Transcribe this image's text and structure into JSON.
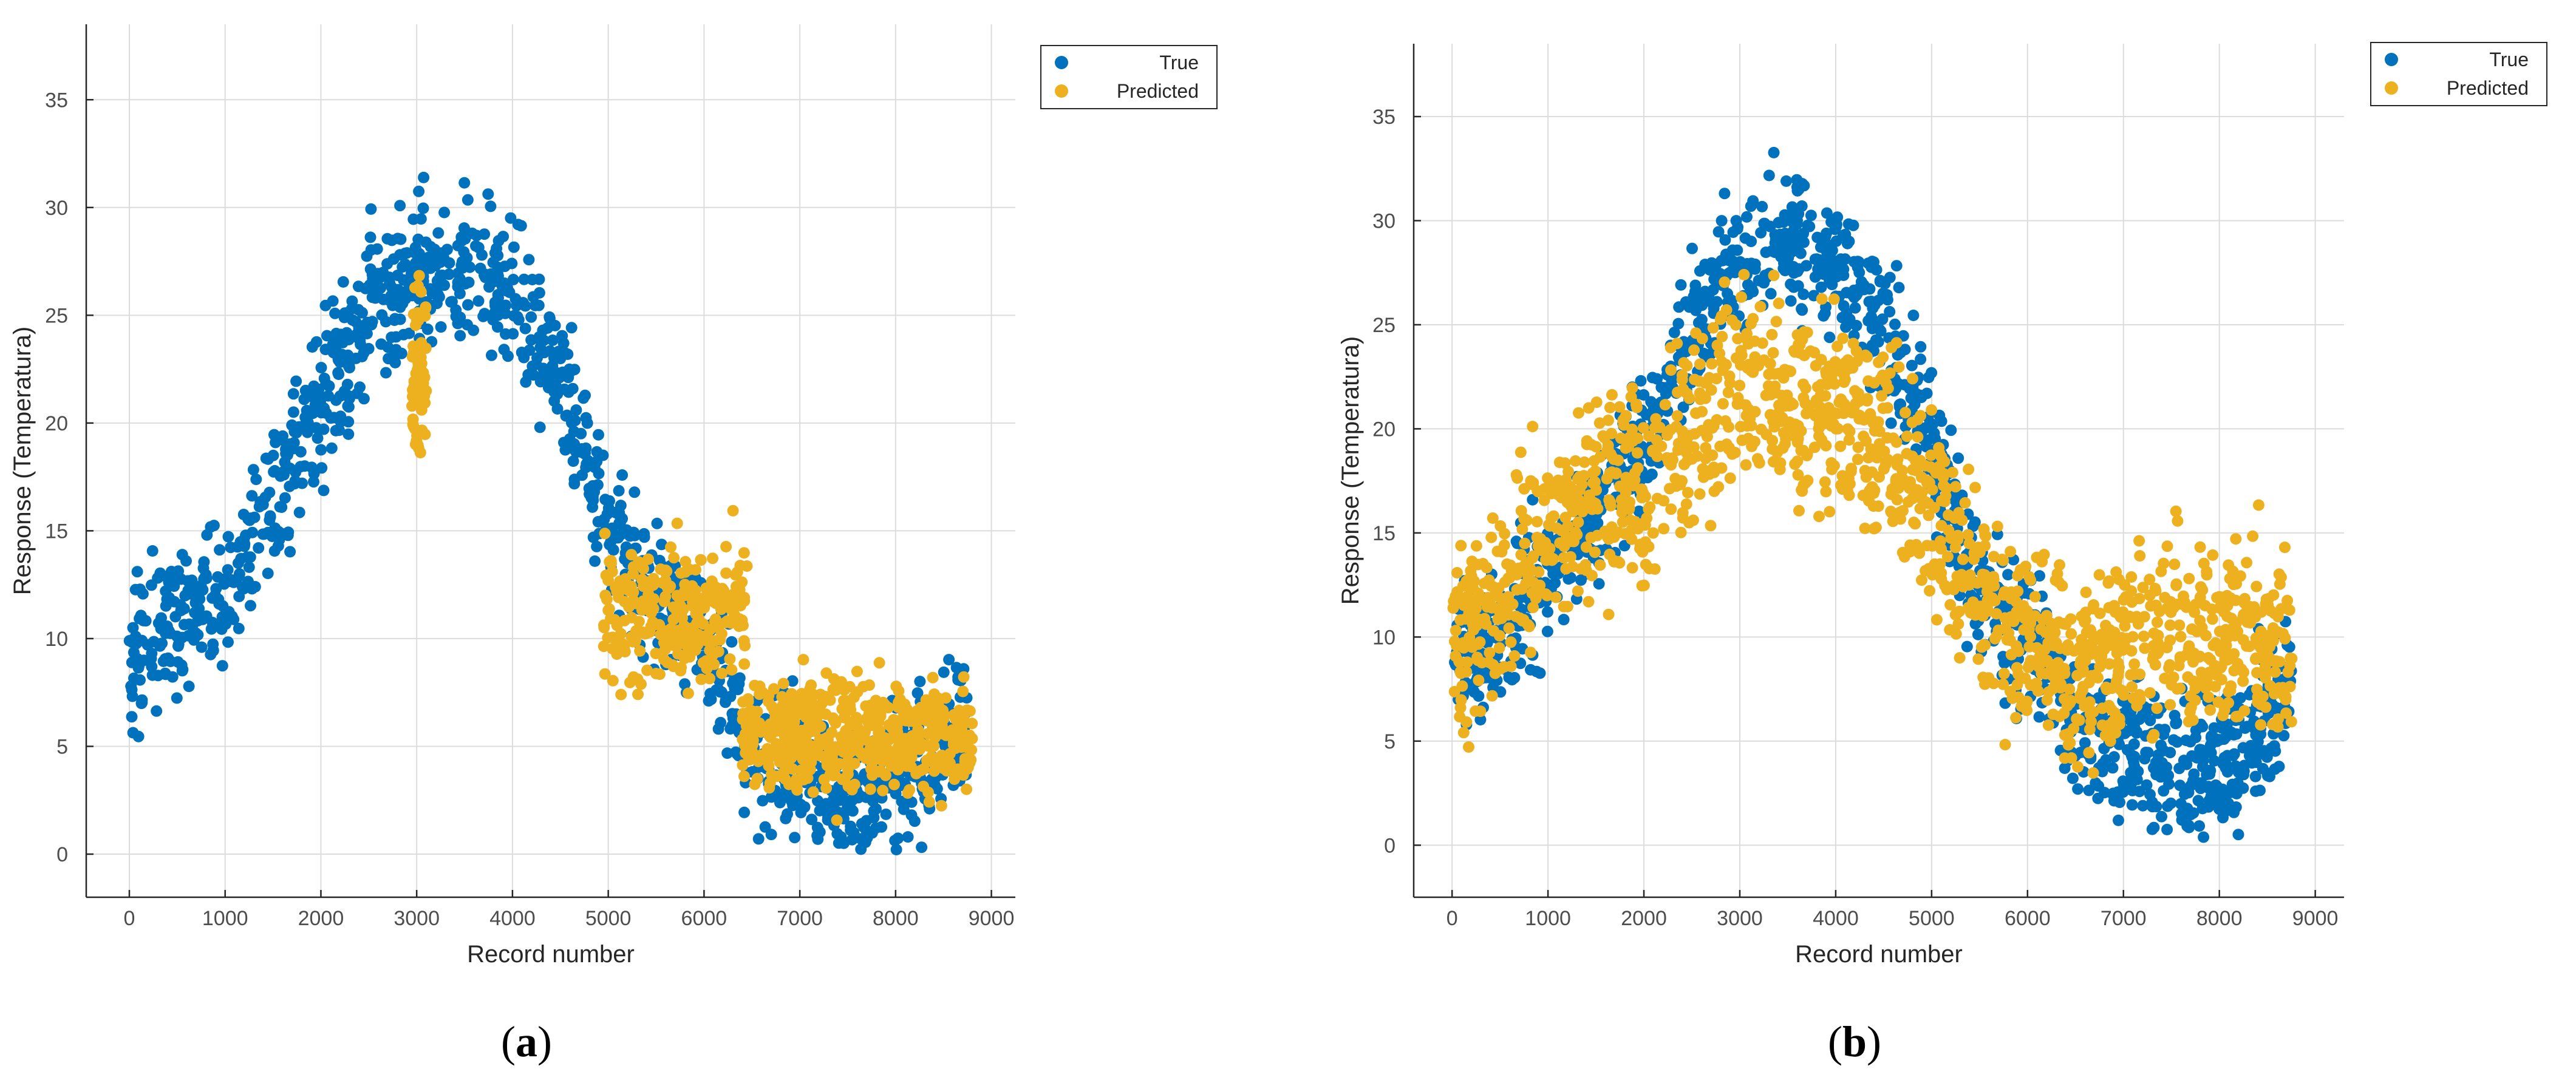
{
  "colors": {
    "true": "#0072BD",
    "predicted": "#EDB120"
  },
  "chart_data": [
    {
      "type": "scatter",
      "caption": {
        "open": "(",
        "letter": "a",
        "close": ")"
      },
      "xlabel": "Record number",
      "ylabel": "Response (Temperatura)",
      "xlim": [
        -450,
        9250
      ],
      "ylim": [
        -2,
        38.5
      ],
      "xticks": [
        0,
        1000,
        2000,
        3000,
        4000,
        5000,
        6000,
        7000,
        8000,
        9000
      ],
      "yticks": [
        0,
        5,
        10,
        15,
        20,
        25,
        30,
        35
      ],
      "grid": true,
      "legend": {
        "position": "outside-top-right",
        "entries": [
          "True",
          "Predicted"
        ]
      },
      "series": [
        {
          "name": "True",
          "color": "#0072BD",
          "trend_x": [
            0,
            500,
            1000,
            1500,
            2000,
            2500,
            3000,
            3500,
            4000,
            4500,
            5000,
            5500,
            6000,
            6500,
            7000,
            7500,
            8000,
            8500,
            8750
          ],
          "trend_y": [
            9,
            11,
            12,
            16,
            21,
            25,
            27,
            27,
            26,
            22,
            15,
            12,
            10,
            5,
            4,
            3,
            4,
            5,
            6
          ],
          "spread": 6
        },
        {
          "name": "Predicted",
          "color": "#EDB120",
          "clusters": [
            {
              "x_range": [
                2950,
                3100
              ],
              "y_center": 23,
              "spread": 7,
              "count": 70
            },
            {
              "x_range": [
                4950,
                6450
              ],
              "y_center": 11,
              "spread": 6,
              "count": 260
            },
            {
              "x_range": [
                6400,
                8800
              ],
              "y_center": 5.5,
              "spread": 4.5,
              "count": 500
            }
          ]
        }
      ]
    },
    {
      "type": "scatter",
      "caption": {
        "open": "(",
        "letter": "b",
        "close": ")"
      },
      "xlabel": "Record number",
      "ylabel": "Response (Temperatura)",
      "xlim": [
        -400,
        9300
      ],
      "ylim": [
        -2.5,
        38.5
      ],
      "xticks": [
        0,
        1000,
        2000,
        3000,
        4000,
        5000,
        6000,
        7000,
        8000,
        9000
      ],
      "yticks": [
        0,
        5,
        10,
        15,
        20,
        25,
        30,
        35
      ],
      "grid": true,
      "legend": {
        "position": "outside-top-right",
        "entries": [
          "True",
          "Predicted"
        ]
      },
      "series": [
        {
          "name": "True",
          "color": "#0072BD",
          "trend_x": [
            0,
            500,
            1000,
            1500,
            2000,
            2500,
            3000,
            3500,
            4000,
            4500,
            5000,
            5500,
            6000,
            6500,
            7000,
            7500,
            8000,
            8500,
            8750
          ],
          "trend_y": [
            9,
            10,
            13,
            16,
            19,
            25,
            28,
            29,
            28,
            25,
            19,
            13,
            10,
            6,
            5,
            4,
            4,
            6,
            8
          ],
          "spread": 6
        },
        {
          "name": "Predicted",
          "color": "#EDB120",
          "trend_x": [
            0,
            500,
            1000,
            1500,
            2000,
            2500,
            3000,
            3500,
            4000,
            4500,
            5000,
            5500,
            6000,
            6500,
            7000,
            7500,
            8000,
            8500,
            8750
          ],
          "trend_y": [
            10,
            12,
            15,
            17,
            17,
            20,
            22,
            21,
            21,
            19,
            16,
            12,
            10,
            8,
            10,
            10,
            10,
            10,
            9
          ],
          "spread": 8,
          "count": 1500
        }
      ]
    }
  ]
}
